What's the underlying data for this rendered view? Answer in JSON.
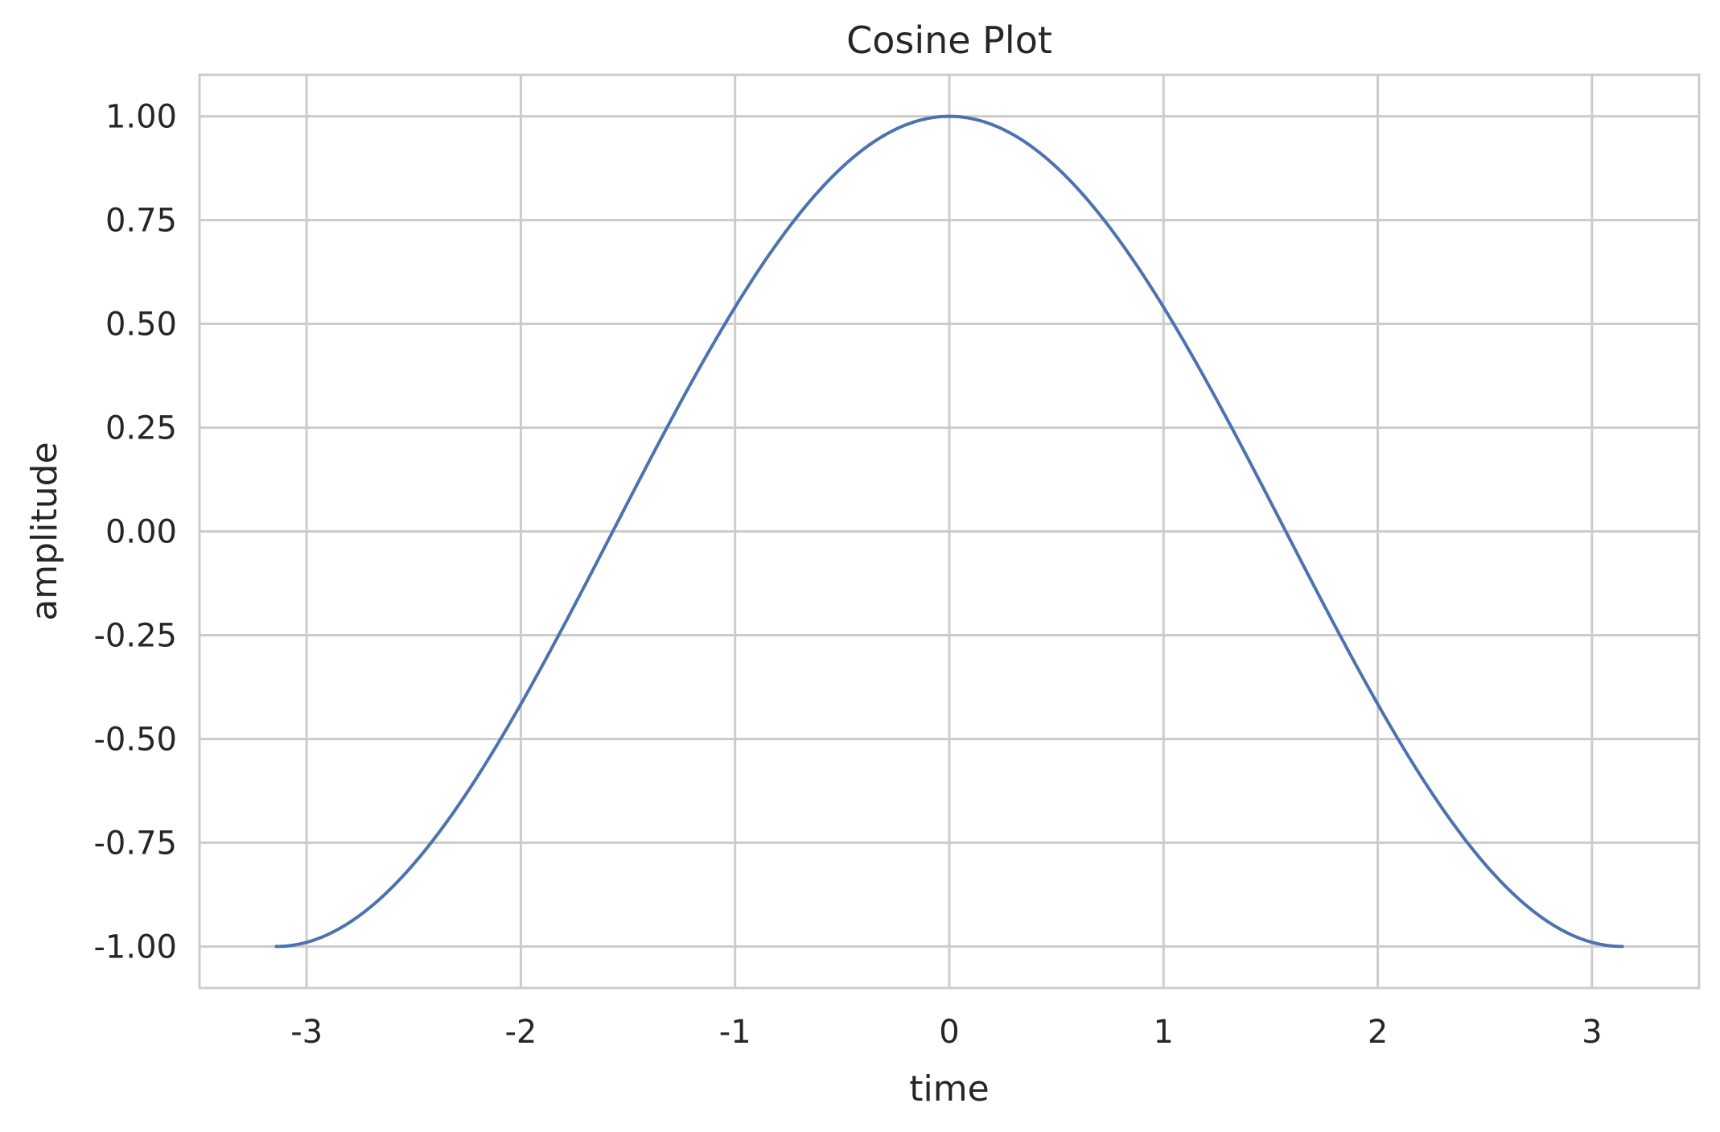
{
  "chart_data": {
    "type": "line",
    "title": "Cosine Plot",
    "xlabel": "time",
    "ylabel": "amplitude",
    "xlim": [
      -3.5,
      3.5
    ],
    "ylim": [
      -1.1,
      1.1
    ],
    "x_ticks": [
      -3,
      -2,
      -1,
      0,
      1,
      2,
      3
    ],
    "x_tick_labels": [
      "-3",
      "-2",
      "-1",
      "0",
      "1",
      "2",
      "3"
    ],
    "y_ticks": [
      1.0,
      0.75,
      0.5,
      0.25,
      0.0,
      -0.25,
      -0.5,
      -0.75,
      -1.0
    ],
    "y_tick_labels": [
      "1.00",
      "0.75",
      "0.50",
      "0.25",
      "0.00",
      "-0.25",
      "-0.50",
      "-0.75",
      "-1.00"
    ],
    "grid": true,
    "series": [
      {
        "function": "cos(x)",
        "x_range": [
          -3.1416,
          3.1416
        ],
        "color": "#4c72b0",
        "x": [
          -3.1416,
          -2.75,
          -2.5,
          -2.25,
          -2.0,
          -1.75,
          -1.5708,
          -1.5,
          -1.25,
          -1.0,
          -0.75,
          -0.5,
          -0.25,
          0.0,
          0.25,
          0.5,
          0.75,
          1.0,
          1.25,
          1.5,
          1.5708,
          1.75,
          2.0,
          2.25,
          2.5,
          2.75,
          3.1416
        ],
        "values": [
          -1.0,
          -0.924,
          -0.801,
          -0.628,
          -0.416,
          -0.178,
          0.0,
          0.071,
          0.315,
          0.54,
          0.732,
          0.878,
          0.969,
          1.0,
          0.969,
          0.878,
          0.732,
          0.54,
          0.315,
          0.071,
          0.0,
          -0.178,
          -0.416,
          -0.628,
          -0.801,
          -0.924,
          -1.0
        ]
      }
    ]
  },
  "colors": {
    "grid": "#cccccc",
    "axes_edge": "#cccccc",
    "line": "#4c72b0",
    "text": "#262626",
    "background": "#ffffff"
  }
}
